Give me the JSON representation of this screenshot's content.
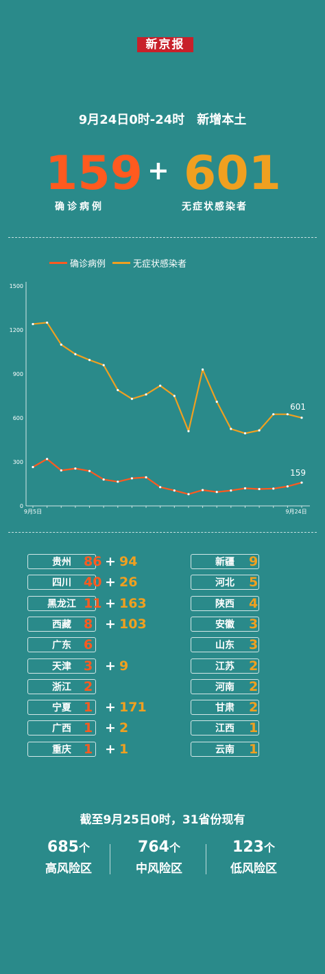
{
  "header": {
    "logo": "新京报",
    "subtitle": "9月24日0时-24时　新增本土",
    "confirmed_total": "159",
    "plus": "+",
    "asymptomatic_total": "601",
    "confirmed_label": "确诊病例",
    "asymptomatic_label": "无症状感染者"
  },
  "colors": {
    "confirmed": "#ff5a1f",
    "asymptomatic": "#f0a020",
    "background": "#2a8a8a",
    "logo": "#c8202a"
  },
  "chart_data": {
    "type": "line",
    "x": [
      "9月5日",
      "9月6日",
      "9月7日",
      "9月8日",
      "9月9日",
      "9月10日",
      "9月11日",
      "9月12日",
      "9月13日",
      "9月14日",
      "9月15日",
      "9月16日",
      "9月17日",
      "9月18日",
      "9月19日",
      "9月20日",
      "9月21日",
      "9月22日",
      "9月23日",
      "9月24日"
    ],
    "x_tick_labels": [
      "9月5日",
      "9月24日"
    ],
    "y_ticks": [
      0,
      300,
      600,
      900,
      1200,
      1500
    ],
    "ylim": [
      0,
      1500
    ],
    "legend": "top-left",
    "grid": false,
    "series": [
      {
        "name": "确诊病例",
        "color": "#ff5a1f",
        "values": [
          265,
          320,
          242,
          255,
          238,
          180,
          165,
          188,
          195,
          128,
          105,
          80,
          108,
          95,
          105,
          120,
          115,
          118,
          133,
          159
        ]
      },
      {
        "name": "无症状感染者",
        "color": "#f0a020",
        "values": [
          1240,
          1250,
          1100,
          1035,
          995,
          960,
          790,
          730,
          760,
          820,
          750,
          510,
          930,
          710,
          525,
          495,
          515,
          625,
          625,
          601
        ]
      }
    ],
    "end_labels": {
      "confirmed": "159",
      "asymptomatic": "601"
    }
  },
  "provinces_left": [
    {
      "name": "贵州",
      "confirmed": "86",
      "plus": "+",
      "asymptomatic": "94"
    },
    {
      "name": "四川",
      "confirmed": "40",
      "plus": "+",
      "asymptomatic": "26"
    },
    {
      "name": "黑龙江",
      "confirmed": "11",
      "plus": "+",
      "asymptomatic": "163"
    },
    {
      "name": "西藏",
      "confirmed": "8",
      "plus": "+",
      "asymptomatic": "103"
    },
    {
      "name": "广东",
      "confirmed": "6",
      "plus": "",
      "asymptomatic": ""
    },
    {
      "name": "天津",
      "confirmed": "3",
      "plus": "+",
      "asymptomatic": "9"
    },
    {
      "name": "浙江",
      "confirmed": "2",
      "plus": "",
      "asymptomatic": ""
    },
    {
      "name": "宁夏",
      "confirmed": "1",
      "plus": "+",
      "asymptomatic": "171"
    },
    {
      "name": "广西",
      "confirmed": "1",
      "plus": "+",
      "asymptomatic": "2"
    },
    {
      "name": "重庆",
      "confirmed": "1",
      "plus": "+",
      "asymptomatic": "1"
    }
  ],
  "provinces_right": [
    {
      "name": "新疆",
      "asymptomatic": "9"
    },
    {
      "name": "河北",
      "asymptomatic": "5"
    },
    {
      "name": "陕西",
      "asymptomatic": "4"
    },
    {
      "name": "安徽",
      "asymptomatic": "3"
    },
    {
      "name": "山东",
      "asymptomatic": "3"
    },
    {
      "name": "江苏",
      "asymptomatic": "2"
    },
    {
      "name": "河南",
      "asymptomatic": "2"
    },
    {
      "name": "甘肃",
      "asymptomatic": "2"
    },
    {
      "name": "江西",
      "asymptomatic": "1"
    },
    {
      "name": "云南",
      "asymptomatic": "1"
    }
  ],
  "summary": {
    "title": "截至9月25日0时，31省份现有",
    "risk": [
      {
        "num": "685",
        "unit": "个",
        "label": "高风险区"
      },
      {
        "num": "764",
        "unit": "个",
        "label": "中风险区"
      },
      {
        "num": "123",
        "unit": "个",
        "label": "低风险区"
      }
    ]
  }
}
